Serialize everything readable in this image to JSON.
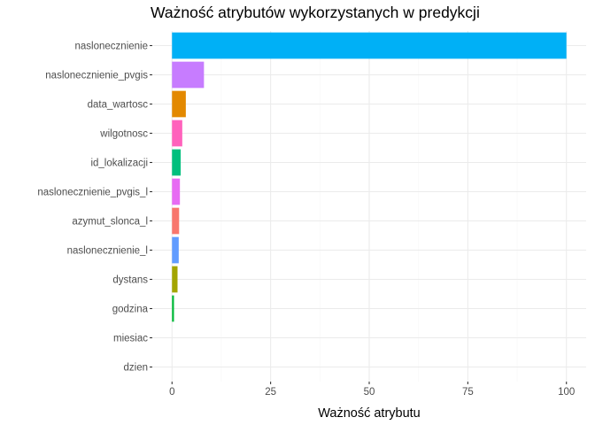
{
  "chart_data": {
    "type": "bar",
    "orientation": "horizontal",
    "title": "Ważność atrybutów wykorzystanych w predykcji",
    "xlabel": "Ważność atrybutu",
    "ylabel": "",
    "xlim": [
      -5,
      105
    ],
    "xticks": [
      0,
      25,
      50,
      75,
      100
    ],
    "grid": true,
    "legend": "none",
    "categories": [
      "naslonecznienie",
      "naslonecznienie_pvgis",
      "data_wartosc",
      "wilgotnosc",
      "id_lokalizacji",
      "naslonecznienie_pvgis_l",
      "azymut_slonca_l",
      "naslonecznienie_l",
      "dystans",
      "godzina",
      "miesiac",
      "dzien"
    ],
    "values": [
      100,
      8.1,
      3.5,
      2.6,
      2.2,
      2.0,
      1.8,
      1.7,
      1.4,
      0.5,
      0,
      0
    ],
    "colors": [
      "#00B0F6",
      "#C77CFF",
      "#E38900",
      "#FF62BC",
      "#00BF7D",
      "#E76BF3",
      "#F8766D",
      "#619CFF",
      "#A3A500",
      "#00BA38",
      "#00BFC4",
      "#C49A00"
    ]
  }
}
